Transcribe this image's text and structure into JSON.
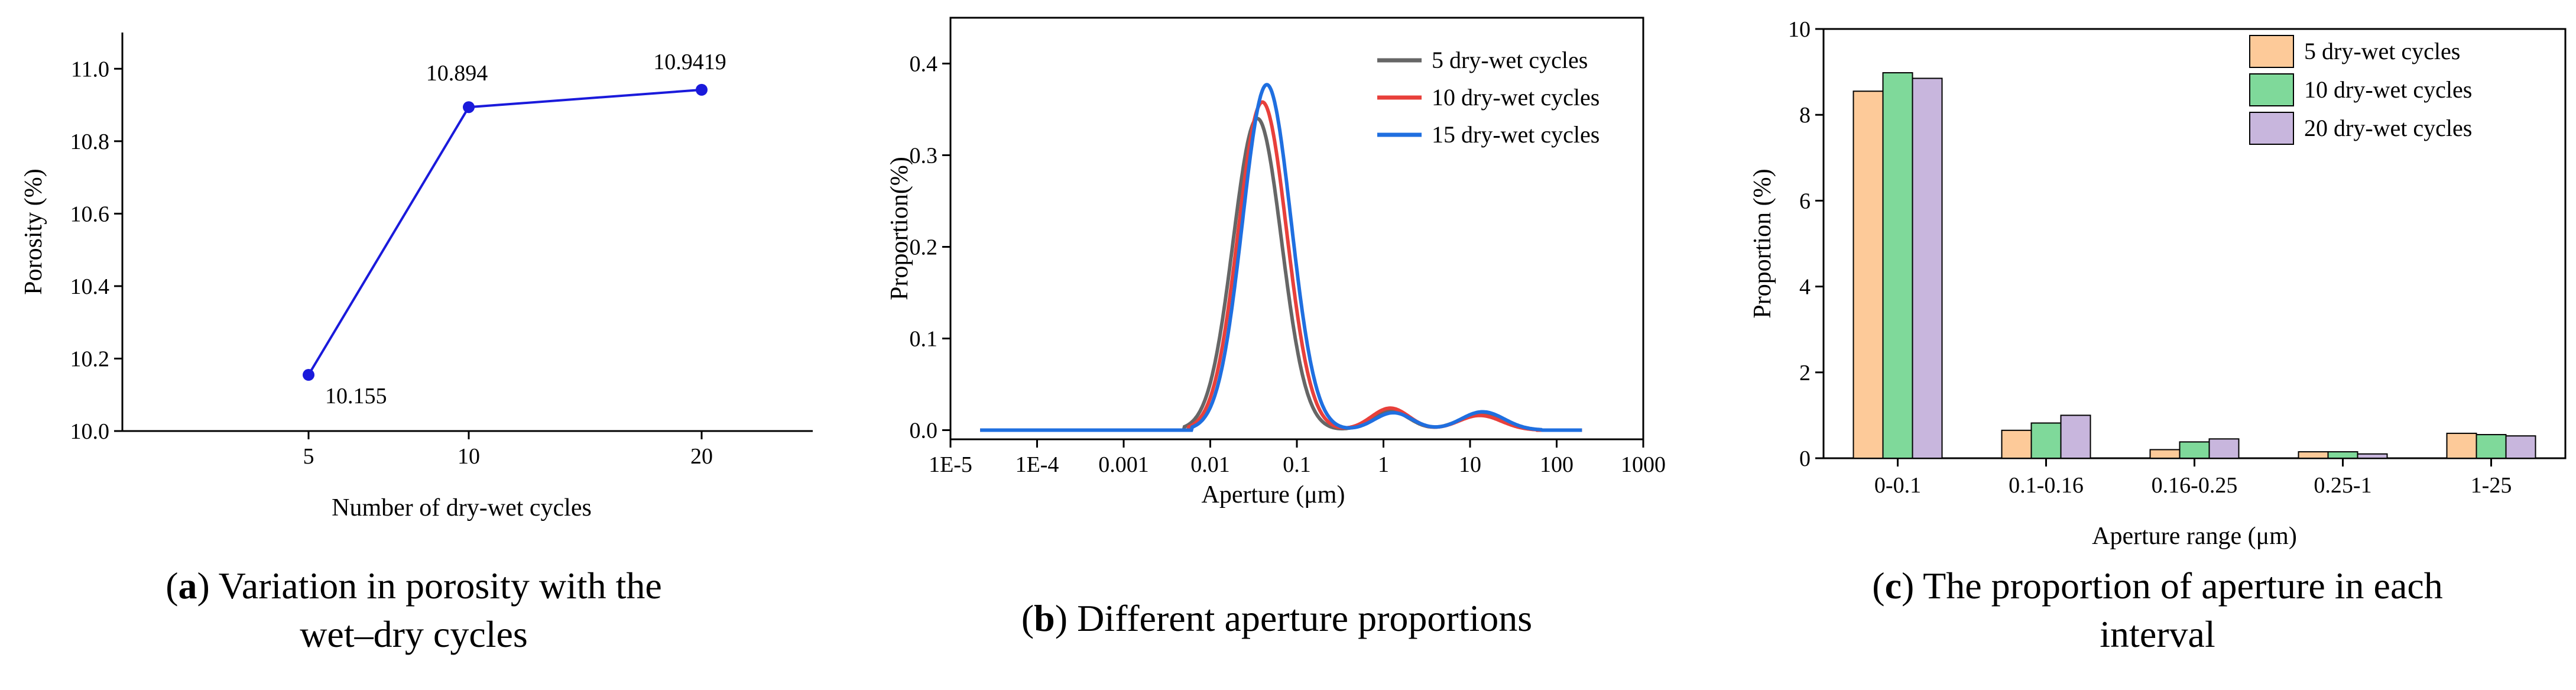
{
  "chart_data": [
    {
      "type": "line",
      "panel": "a",
      "x": [
        "5",
        "10",
        "20"
      ],
      "values": [
        10.155,
        10.894,
        10.9419
      ],
      "data_labels": [
        "10.155",
        "10.894",
        "10.9419"
      ],
      "xlabel": "Number of dry-wet cycles",
      "ylabel": "Porosity (%)",
      "ylim": [
        10.0,
        11.1
      ],
      "yticks": [
        "10.0",
        "10.2",
        "10.4",
        "10.6",
        "10.8",
        "11.0"
      ],
      "color": "#1a1adb",
      "caption_letter": "a",
      "caption_text": ") Variation in porosity with the",
      "caption_text2": "wet–dry cycles"
    },
    {
      "type": "line",
      "panel": "b",
      "xscale": "log",
      "xlim": [
        1e-05,
        1000
      ],
      "ylim": [
        -0.01,
        0.45
      ],
      "xticks": [
        "1E-5",
        "1E-4",
        "0.001",
        "0.01",
        "0.1",
        "1",
        "10",
        "100",
        "1000"
      ],
      "yticks": [
        "0.0",
        "0.1",
        "0.2",
        "0.3",
        "0.4"
      ],
      "xlabel": "Aperture (μm)",
      "ylabel": "Proportion(%)",
      "series": [
        {
          "name": "5 dry-wet cycles",
          "color": "#666666",
          "peak_x": 0.035,
          "peak_y": 0.34,
          "bump1_x": 1.2,
          "bump1_y": 0.021,
          "bump2_x": 13,
          "bump2_y": 0.017
        },
        {
          "name": "10 dry-wet cycles",
          "color": "#e8403b",
          "peak_x": 0.04,
          "peak_y": 0.358,
          "bump1_x": 1.2,
          "bump1_y": 0.024,
          "bump2_x": 13,
          "bump2_y": 0.016
        },
        {
          "name": "15 dry-wet cycles",
          "color": "#1f6fe0",
          "peak_x": 0.045,
          "peak_y": 0.377,
          "bump1_x": 1.3,
          "bump1_y": 0.019,
          "bump2_x": 14,
          "bump2_y": 0.02
        }
      ],
      "caption_letter": "b",
      "caption_text": ") Different aperture proportions"
    },
    {
      "type": "bar",
      "panel": "c",
      "categories": [
        "0-0.1",
        "0.1-0.16",
        "0.16-0.25",
        "0.25-1",
        "1-25"
      ],
      "series": [
        {
          "name": "5 dry-wet cycles",
          "color": "#fdca99",
          "values": [
            8.55,
            0.65,
            0.2,
            0.15,
            0.58
          ]
        },
        {
          "name": "10 dry-wet cycles",
          "color": "#7fd99a",
          "values": [
            8.98,
            0.82,
            0.38,
            0.15,
            0.55
          ]
        },
        {
          "name": "20 dry-wet cycles",
          "color": "#c8b6dd",
          "values": [
            8.85,
            1.0,
            0.45,
            0.1,
            0.52
          ]
        }
      ],
      "ylim": [
        0,
        10
      ],
      "yticks": [
        "0",
        "2",
        "4",
        "6",
        "8",
        "10"
      ],
      "xlabel": "Aperture range (μm)",
      "ylabel": "Proportion (%)",
      "caption_letter": "c",
      "caption_text": ") The proportion of aperture in each",
      "caption_text2": "interval"
    }
  ]
}
